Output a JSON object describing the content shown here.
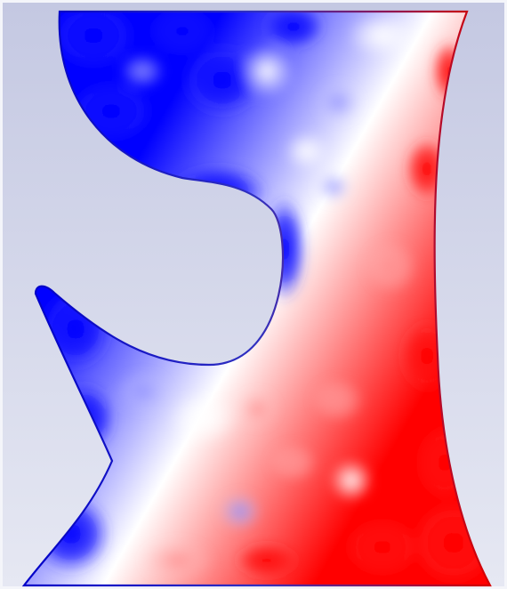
{
  "viewport": {
    "background_top": "#c4c8e2",
    "background_bottom": "#e6e8f3",
    "frame_color": "#f4f5fa"
  },
  "field": {
    "type": "heatmap",
    "colormap": {
      "low": "#0000ff",
      "mid": "#ffffff",
      "high": "#ff0000"
    },
    "shape_outline_color_left": "#0000c8",
    "shape_outline_color_right": "#d80000"
  }
}
